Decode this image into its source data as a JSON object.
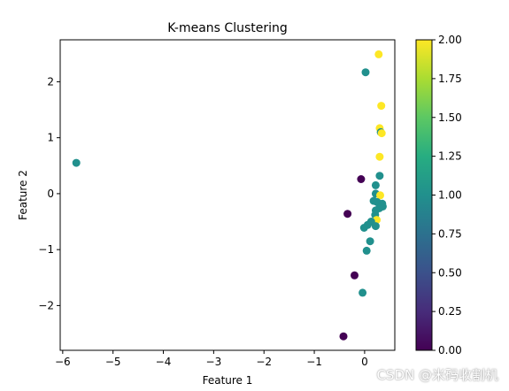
{
  "chart_data": {
    "type": "scatter",
    "title": "K-means Clustering",
    "xlabel": "Feature 1",
    "ylabel": "Feature 2",
    "xlim": [
      -6.05,
      0.6
    ],
    "ylim": [
      -2.8,
      2.75
    ],
    "x_ticks": [
      -6,
      -5,
      -4,
      -3,
      -2,
      -1,
      0
    ],
    "x_tick_labels": [
      "−6",
      "−5",
      "−4",
      "−3",
      "−2",
      "−1",
      "0"
    ],
    "y_ticks": [
      -2,
      -1,
      0,
      1,
      2
    ],
    "y_tick_labels": [
      "−2",
      "−1",
      "0",
      "1",
      "2"
    ],
    "grid": false,
    "colormap": "viridis",
    "colorbar": {
      "range": [
        0.0,
        2.0
      ],
      "ticks": [
        0.0,
        0.25,
        0.5,
        0.75,
        1.0,
        1.25,
        1.5,
        1.75,
        2.0
      ],
      "tick_labels": [
        "0.00",
        "0.25",
        "0.50",
        "0.75",
        "1.00",
        "1.25",
        "1.50",
        "1.75",
        "2.00"
      ]
    },
    "points": [
      {
        "x": -5.73,
        "y": 0.55,
        "cluster": 1
      },
      {
        "x": 0.02,
        "y": 2.17,
        "cluster": 1
      },
      {
        "x": 0.28,
        "y": 2.49,
        "cluster": 2
      },
      {
        "x": 0.33,
        "y": 1.57,
        "cluster": 2
      },
      {
        "x": 0.3,
        "y": 1.17,
        "cluster": 2
      },
      {
        "x": 0.32,
        "y": 1.1,
        "cluster": 1
      },
      {
        "x": 0.34,
        "y": 1.08,
        "cluster": 2
      },
      {
        "x": 0.3,
        "y": 0.66,
        "cluster": 2
      },
      {
        "x": 0.3,
        "y": 0.32,
        "cluster": 1
      },
      {
        "x": -0.07,
        "y": 0.26,
        "cluster": 0
      },
      {
        "x": 0.22,
        "y": 0.15,
        "cluster": 1
      },
      {
        "x": 0.22,
        "y": 0.0,
        "cluster": 1
      },
      {
        "x": 0.31,
        "y": -0.03,
        "cluster": 2
      },
      {
        "x": 0.18,
        "y": -0.13,
        "cluster": 1
      },
      {
        "x": 0.25,
        "y": -0.15,
        "cluster": 1
      },
      {
        "x": 0.35,
        "y": -0.18,
        "cluster": 1
      },
      {
        "x": 0.36,
        "y": -0.23,
        "cluster": 1
      },
      {
        "x": 0.29,
        "y": -0.26,
        "cluster": 1
      },
      {
        "x": 0.22,
        "y": -0.3,
        "cluster": 1
      },
      {
        "x": -0.34,
        "y": -0.36,
        "cluster": 0
      },
      {
        "x": 0.21,
        "y": -0.38,
        "cluster": 1
      },
      {
        "x": 0.24,
        "y": -0.47,
        "cluster": 2
      },
      {
        "x": 0.13,
        "y": -0.5,
        "cluster": 1
      },
      {
        "x": 0.06,
        "y": -0.56,
        "cluster": 1
      },
      {
        "x": 0.22,
        "y": -0.58,
        "cluster": 1
      },
      {
        "x": -0.01,
        "y": -0.61,
        "cluster": 1
      },
      {
        "x": 0.11,
        "y": -0.85,
        "cluster": 1
      },
      {
        "x": 0.04,
        "y": -1.02,
        "cluster": 1
      },
      {
        "x": -0.2,
        "y": -1.46,
        "cluster": 0
      },
      {
        "x": -0.04,
        "y": -1.77,
        "cluster": 1
      },
      {
        "x": -0.42,
        "y": -2.55,
        "cluster": 0
      }
    ]
  },
  "watermark": "CSDN @米码收割机"
}
